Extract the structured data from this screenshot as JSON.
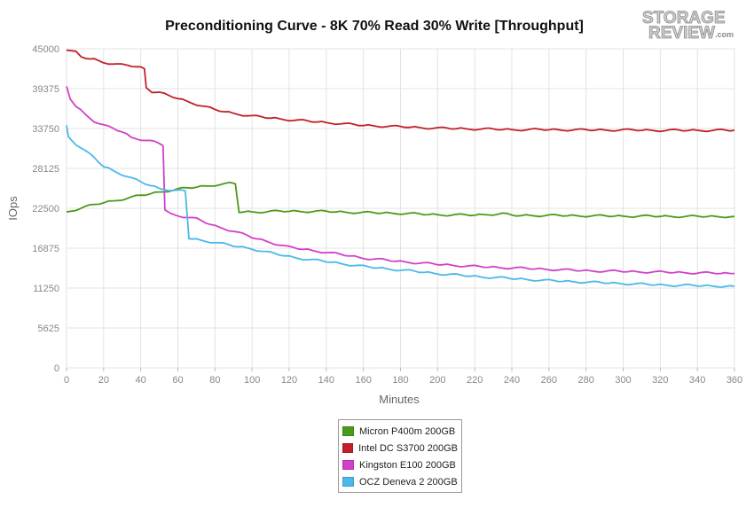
{
  "chart_data": {
    "type": "line",
    "title": "Preconditioning Curve - 8K 70% Read 30% Write [Throughput]",
    "xlabel": "Minutes",
    "ylabel": "IOps",
    "xlim": [
      0,
      360
    ],
    "ylim": [
      0,
      45000
    ],
    "x_ticks": [
      "0",
      "20",
      "40",
      "60",
      "80",
      "100",
      "120",
      "140",
      "160",
      "180",
      "200",
      "220",
      "240",
      "260",
      "280",
      "300",
      "320",
      "340",
      "360"
    ],
    "y_ticks": [
      "0",
      "5625",
      "11250",
      "16875",
      "22500",
      "28125",
      "33750",
      "39375",
      "45000"
    ],
    "grid": true,
    "legend_position": "bottom",
    "series": [
      {
        "name": "Micron P400m 200GB",
        "color": "#4a9a1b",
        "points": [
          [
            0,
            22000
          ],
          [
            10,
            22700
          ],
          [
            20,
            23300
          ],
          [
            30,
            23800
          ],
          [
            40,
            24300
          ],
          [
            50,
            24800
          ],
          [
            60,
            25200
          ],
          [
            70,
            25500
          ],
          [
            80,
            25800
          ],
          [
            88,
            26000
          ],
          [
            91,
            25900
          ],
          [
            93,
            22000
          ],
          [
            100,
            22000
          ],
          [
            120,
            22100
          ],
          [
            140,
            22050
          ],
          [
            160,
            21900
          ],
          [
            180,
            21800
          ],
          [
            200,
            21600
          ],
          [
            220,
            21550
          ],
          [
            235,
            21750
          ],
          [
            240,
            21500
          ],
          [
            260,
            21500
          ],
          [
            280,
            21450
          ],
          [
            300,
            21400
          ],
          [
            320,
            21380
          ],
          [
            340,
            21350
          ],
          [
            360,
            21350
          ]
        ]
      },
      {
        "name": "Intel DC S3700 200GB",
        "color": "#c0202a",
        "points": [
          [
            0,
            44800
          ],
          [
            5,
            44500
          ],
          [
            8,
            43800
          ],
          [
            15,
            43500
          ],
          [
            20,
            43100
          ],
          [
            25,
            42900
          ],
          [
            30,
            42700
          ],
          [
            38,
            42500
          ],
          [
            42,
            42200
          ],
          [
            43,
            39600
          ],
          [
            46,
            39000
          ],
          [
            50,
            38800
          ],
          [
            60,
            38000
          ],
          [
            70,
            37200
          ],
          [
            80,
            36400
          ],
          [
            90,
            35900
          ],
          [
            100,
            35500
          ],
          [
            120,
            35000
          ],
          [
            140,
            34600
          ],
          [
            160,
            34200
          ],
          [
            180,
            34000
          ],
          [
            200,
            33800
          ],
          [
            220,
            33700
          ],
          [
            240,
            33600
          ],
          [
            260,
            33600
          ],
          [
            280,
            33550
          ],
          [
            300,
            33550
          ],
          [
            320,
            33500
          ],
          [
            340,
            33500
          ],
          [
            360,
            33500
          ]
        ]
      },
      {
        "name": "Kingston E100 200GB",
        "color": "#d040c8",
        "points": [
          [
            0,
            39700
          ],
          [
            2,
            38000
          ],
          [
            5,
            36900
          ],
          [
            10,
            35800
          ],
          [
            15,
            34800
          ],
          [
            20,
            34200
          ],
          [
            30,
            33300
          ],
          [
            35,
            32500
          ],
          [
            45,
            32000
          ],
          [
            50,
            31600
          ],
          [
            52,
            31400
          ],
          [
            53,
            22300
          ],
          [
            56,
            21700
          ],
          [
            60,
            21500
          ],
          [
            70,
            21000
          ],
          [
            80,
            20000
          ],
          [
            90,
            19300
          ],
          [
            100,
            18400
          ],
          [
            110,
            17700
          ],
          [
            120,
            17000
          ],
          [
            140,
            16300
          ],
          [
            160,
            15500
          ],
          [
            180,
            15000
          ],
          [
            200,
            14600
          ],
          [
            220,
            14300
          ],
          [
            240,
            14100
          ],
          [
            260,
            13900
          ],
          [
            280,
            13700
          ],
          [
            300,
            13600
          ],
          [
            320,
            13500
          ],
          [
            340,
            13400
          ],
          [
            360,
            13300
          ]
        ]
      },
      {
        "name": "OCZ Deneva 2 200GB",
        "color": "#4ab8e8",
        "points": [
          [
            0,
            34200
          ],
          [
            1,
            32600
          ],
          [
            5,
            31600
          ],
          [
            10,
            30600
          ],
          [
            15,
            29600
          ],
          [
            20,
            28400
          ],
          [
            30,
            27300
          ],
          [
            40,
            26200
          ],
          [
            50,
            25300
          ],
          [
            60,
            25000
          ],
          [
            64,
            24900
          ],
          [
            66,
            18300
          ],
          [
            70,
            18100
          ],
          [
            80,
            17700
          ],
          [
            90,
            17200
          ],
          [
            100,
            16800
          ],
          [
            110,
            16200
          ],
          [
            120,
            15700
          ],
          [
            130,
            15300
          ],
          [
            140,
            15000
          ],
          [
            160,
            14300
          ],
          [
            180,
            13800
          ],
          [
            200,
            13300
          ],
          [
            220,
            12900
          ],
          [
            240,
            12600
          ],
          [
            260,
            12300
          ],
          [
            280,
            12100
          ],
          [
            300,
            11900
          ],
          [
            320,
            11700
          ],
          [
            340,
            11600
          ],
          [
            360,
            11500
          ]
        ]
      }
    ]
  },
  "logo": {
    "line1": "STORAGE",
    "line2": "REVIEW",
    "suffix": ".com"
  }
}
